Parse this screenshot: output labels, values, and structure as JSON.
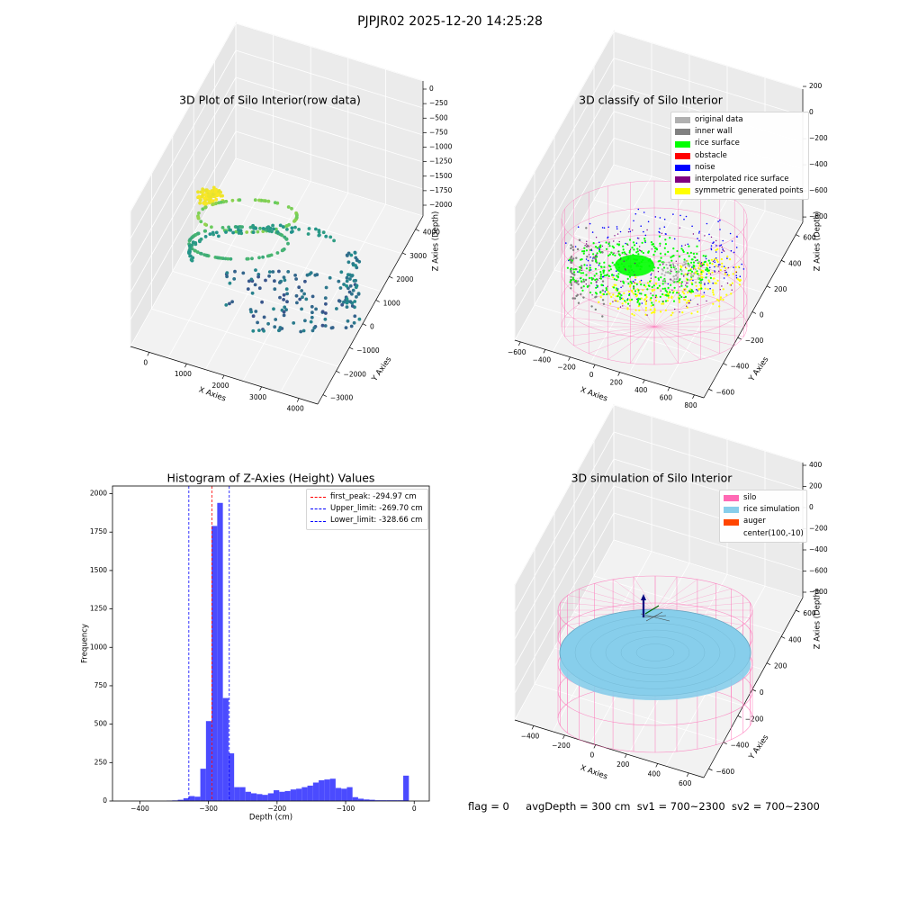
{
  "figure": {
    "suptitle": "PJPJR02 2025-12-20 14:25:28"
  },
  "status": {
    "flag": "flag = 0",
    "avg_depth": "avgDepth = 300 cm",
    "sv1": "sv1 = 700~2300",
    "sv2": "sv2 = 700~2300"
  },
  "colors": {
    "original": "#b0b0b0",
    "inner_wall": "#808080",
    "rice_surface": "#00ff00",
    "obstacle": "#ff0000",
    "noise": "#0000ff",
    "interpolated": "#800080",
    "symmetric": "#ffff00",
    "silo": "#ff69b4",
    "rice_sim": "#87ceeb",
    "auger": "#ff4500",
    "hist_bar": "#4b4bff"
  },
  "chart_data": [
    {
      "type": "scatter",
      "projection": "3d",
      "title": "3D Plot of Silo Interior(row data)",
      "xlabel": "X Axies",
      "ylabel": "Y Axies",
      "zlabel": "Z Axies (Depth)",
      "xticks": [
        "0",
        "1000",
        "2000",
        "3000",
        "4000"
      ],
      "yticks": [
        "−3000",
        "−2000",
        "−1000",
        "0",
        "1000",
        "2000",
        "3000",
        "4000"
      ],
      "zticks": [
        "0",
        "−250",
        "−500",
        "−750",
        "−1000",
        "−1250",
        "−1500",
        "−1750",
        "−2000"
      ],
      "xlim": [
        -500,
        4500
      ],
      "ylim": [
        -3500,
        4500
      ],
      "zlim": [
        -2200,
        100
      ],
      "colormap": "viridis"
    },
    {
      "type": "scatter",
      "projection": "3d",
      "title": "3D classify of Silo Interior",
      "xlabel": "X Axies",
      "ylabel": "Y Axies",
      "zlabel": "Z Axies (Depth)",
      "xticks": [
        "−600",
        "−400",
        "−200",
        "0",
        "200",
        "400",
        "600",
        "800"
      ],
      "yticks": [
        "−600",
        "−400",
        "−200",
        "0",
        "200",
        "400",
        "600"
      ],
      "zticks": [
        "200",
        "0",
        "−200",
        "−400",
        "−600",
        "−800"
      ],
      "ztick_partial": "00",
      "legend": [
        "original data",
        "inner wall",
        "rice surface",
        "obstacle",
        "noise",
        "interpolated rice surface",
        "symmetric generated points"
      ],
      "legend_loc": "upper right"
    },
    {
      "type": "bar",
      "title": "Histogram of Z-Axies (Height) Values",
      "xlabel": "Depth (cm)",
      "ylabel": "Frequency",
      "xlim": [
        -440,
        22
      ],
      "ylim": [
        0,
        2050
      ],
      "xticks": [
        -400,
        -300,
        -200,
        -100,
        0
      ],
      "xtick_labels": [
        "−400",
        "−300",
        "−200",
        "−100",
        "0"
      ],
      "yticks": [
        0,
        250,
        500,
        750,
        1000,
        1250,
        1500,
        1750,
        2000
      ],
      "bin_width": 8.22,
      "bin_start": -427,
      "values": [
        0,
        0,
        0,
        0,
        0,
        0,
        0,
        0,
        2,
        4,
        8,
        18,
        32,
        28,
        210,
        520,
        1790,
        1940,
        670,
        310,
        90,
        90,
        60,
        50,
        45,
        40,
        50,
        70,
        60,
        65,
        75,
        80,
        90,
        100,
        120,
        135,
        140,
        145,
        85,
        80,
        90,
        25,
        15,
        10,
        8,
        5,
        5,
        5,
        5,
        5,
        165
      ],
      "lines": [
        {
          "name": "first_peak: -294.97 cm",
          "x": -294.97,
          "color": "#ff0000"
        },
        {
          "name": "Upper_limit: -269.70 cm",
          "x": -269.7,
          "color": "#0000ff"
        },
        {
          "name": "Lower_limit: -328.66 cm",
          "x": -328.66,
          "color": "#0000ff"
        }
      ],
      "legend_loc": "upper right"
    },
    {
      "type": "scatter",
      "projection": "3d",
      "title": "3D simulation of Silo Interior",
      "xlabel": "X Axies",
      "ylabel": "Y Axies",
      "zlabel": "Z Axies (Depth)",
      "xticks": [
        "−400",
        "−200",
        "0",
        "200",
        "400",
        "600"
      ],
      "yticks": [
        "−600",
        "−400",
        "−200",
        "0",
        "200",
        "400",
        "600"
      ],
      "zticks": [
        "400",
        "200",
        "0",
        "−200",
        "−400",
        "−600",
        "−800"
      ],
      "legend": [
        "silo",
        "rice simulation",
        "auger",
        "center(100,-10)"
      ],
      "legend_loc": "upper right"
    }
  ]
}
